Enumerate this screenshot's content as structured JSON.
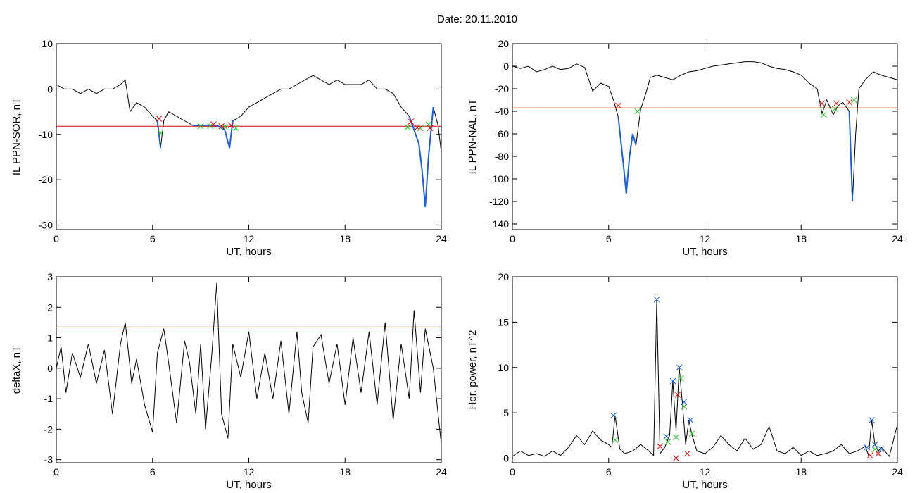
{
  "header": {
    "date_label": "Date:  20.11.2010"
  },
  "colors": {
    "trace": "#000000",
    "threshold": "#e00000",
    "highlight": "#1a5fd6",
    "marker_red": "#e00000",
    "marker_green": "#22c022",
    "marker_blue": "#1a5fd6"
  },
  "chart_data": [
    {
      "id": "il-ppn-sor",
      "type": "line",
      "xlabel": "UT, hours",
      "ylabel": "IL PPN-SOR, nT",
      "xlim": [
        0,
        24
      ],
      "ylim": [
        -31,
        10
      ],
      "xticks": [
        0,
        6,
        12,
        18,
        24
      ],
      "yticks": [
        10,
        0,
        -10,
        -20,
        -30
      ],
      "threshold": -8.2,
      "x": [
        0,
        0.5,
        1,
        1.5,
        2,
        2.5,
        3,
        3.5,
        4,
        4.3,
        4.6,
        5,
        5.5,
        6,
        6.3,
        6.5,
        6.7,
        7,
        7.5,
        8,
        8.5,
        9,
        9.5,
        10,
        10.5,
        10.8,
        11,
        11.5,
        12,
        12.5,
        13,
        13.5,
        14,
        14.5,
        15,
        15.5,
        16,
        16.5,
        17,
        17.5,
        18,
        18.5,
        19,
        19.5,
        20,
        20.5,
        21,
        21.5,
        22,
        22.3,
        22.6,
        22.8,
        23,
        23.2,
        23.5,
        23.8,
        24
      ],
      "y": [
        1,
        0,
        0,
        -1,
        0,
        -1,
        0,
        0,
        1,
        2,
        -5,
        -3,
        -4,
        -6,
        -7,
        -13,
        -7,
        -5,
        -6,
        -7,
        -8,
        -8,
        -8,
        -8,
        -9,
        -13,
        -7,
        -6,
        -4,
        -3,
        -2,
        -1,
        0,
        0,
        1,
        2,
        3,
        2,
        1,
        2,
        1,
        1,
        1,
        2,
        0,
        0,
        -1,
        -4,
        -6,
        -9,
        -12,
        -18,
        -26,
        -15,
        -4,
        -8,
        -14
      ],
      "highlight_segments": [
        [
          6.3,
          6.6
        ],
        [
          8.5,
          11
        ],
        [
          21.8,
          23.6
        ]
      ],
      "markers_red": [
        [
          6.4,
          -6.5
        ],
        [
          9.8,
          -7.8
        ],
        [
          10.3,
          -8.2
        ],
        [
          10.9,
          -8
        ],
        [
          22.1,
          -7.2
        ],
        [
          22.5,
          -8.5
        ],
        [
          23.3,
          -8.6
        ]
      ],
      "markers_green": [
        [
          6.5,
          -9.7
        ],
        [
          9,
          -8.2
        ],
        [
          9.6,
          -8.1
        ],
        [
          10.5,
          -8.3
        ],
        [
          11.2,
          -8.6
        ],
        [
          21.9,
          -8.4
        ],
        [
          22.7,
          -8.6
        ],
        [
          23.2,
          -7.8
        ]
      ]
    },
    {
      "id": "il-ppn-nal",
      "type": "line",
      "xlabel": "UT, hours",
      "ylabel": "IL PPN-NAL, nT",
      "xlim": [
        0,
        24
      ],
      "ylim": [
        -145,
        20
      ],
      "xticks": [
        0,
        6,
        12,
        18,
        24
      ],
      "yticks": [
        20,
        0,
        -20,
        -40,
        -60,
        -80,
        -100,
        -120,
        -140
      ],
      "threshold": -37,
      "x": [
        0,
        0.5,
        1,
        1.5,
        2,
        2.5,
        3,
        3.5,
        4,
        4.5,
        5,
        5.5,
        6,
        6.3,
        6.6,
        6.9,
        7.1,
        7.3,
        7.5,
        7.7,
        8,
        8.3,
        8.6,
        9,
        9.5,
        10,
        10.5,
        11,
        11.5,
        12,
        12.5,
        13,
        13.5,
        14,
        14.5,
        15,
        15.5,
        16,
        16.5,
        17,
        17.5,
        18,
        18.5,
        19,
        19.3,
        19.6,
        20,
        20.3,
        20.6,
        21,
        21.2,
        21.4,
        21.6,
        22,
        22.5,
        23,
        23.5,
        24
      ],
      "y": [
        0,
        -2,
        0,
        -5,
        -3,
        0,
        -3,
        -2,
        2,
        -1,
        -22,
        -15,
        -18,
        -30,
        -45,
        -85,
        -113,
        -80,
        -60,
        -70,
        -38,
        -25,
        -10,
        -8,
        -10,
        -12,
        -8,
        -5,
        -4,
        -2,
        0,
        1,
        2,
        3,
        4,
        4,
        3,
        0,
        -2,
        -3,
        -5,
        -8,
        -15,
        -20,
        -42,
        -30,
        -43,
        -35,
        -32,
        -40,
        -120,
        -60,
        -20,
        -12,
        -5,
        -8,
        -10,
        -12
      ],
      "highlight_segments": [
        [
          6.5,
          7.8
        ],
        [
          19.3,
          19.4
        ],
        [
          20.1,
          20.2
        ],
        [
          21,
          21.3
        ]
      ],
      "markers_red": [
        [
          6.6,
          -35
        ],
        [
          19.3,
          -33
        ],
        [
          20.2,
          -33
        ],
        [
          21,
          -32
        ]
      ],
      "markers_green": [
        [
          7.8,
          -40
        ],
        [
          19.4,
          -43
        ],
        [
          20.1,
          -38
        ],
        [
          21.3,
          -30
        ]
      ]
    },
    {
      "id": "deltax",
      "type": "line",
      "xlabel": "UT, hours",
      "ylabel": "deltaX, nT",
      "xlim": [
        0,
        24
      ],
      "ylim": [
        -3.1,
        3
      ],
      "xticks": [
        0,
        6,
        12,
        18,
        24
      ],
      "yticks": [
        3,
        2,
        1,
        0,
        -1,
        -2,
        -3
      ],
      "threshold": 1.35,
      "x": [
        0,
        0.3,
        0.6,
        1,
        1.5,
        2,
        2.5,
        3,
        3.5,
        4,
        4.3,
        4.7,
        5,
        5.5,
        6,
        6.3,
        6.7,
        7,
        7.5,
        8,
        8.3,
        8.7,
        9,
        9.3,
        9.7,
        10,
        10.3,
        10.7,
        11,
        11.5,
        12,
        12.5,
        13,
        13.5,
        14,
        14.5,
        15,
        15.3,
        15.7,
        16,
        16.5,
        17,
        17.5,
        18,
        18.5,
        19,
        19.5,
        20,
        20.5,
        21,
        21.5,
        22,
        22.3,
        22.7,
        23,
        23.5,
        24
      ],
      "y": [
        0,
        0.7,
        -0.8,
        0.5,
        -0.3,
        0.8,
        -0.5,
        0.6,
        -1.5,
        0.8,
        1.5,
        -0.5,
        0.3,
        -1.2,
        -2.1,
        0.5,
        1.3,
        0.2,
        -1.8,
        0.9,
        0.2,
        -1.5,
        0.8,
        -2,
        0.5,
        2.8,
        -1.5,
        -2.3,
        0.8,
        -0.3,
        1.2,
        -1,
        0.5,
        -1,
        0.9,
        -1.5,
        1.2,
        -0.8,
        -1.8,
        0.7,
        1.1,
        -0.5,
        0.8,
        -1.2,
        1,
        -0.8,
        1.2,
        -1.2,
        1.5,
        -1.7,
        0.8,
        -1,
        1.9,
        -0.8,
        1.3,
        0,
        -2.5
      ]
    },
    {
      "id": "hor-power",
      "type": "line",
      "xlabel": "UT, hours",
      "ylabel": "Hor. power, nT^2",
      "xlim": [
        0,
        24
      ],
      "ylim": [
        -0.5,
        20
      ],
      "xticks": [
        0,
        6,
        12,
        18,
        24
      ],
      "yticks": [
        20,
        15,
        10,
        5,
        0
      ],
      "x": [
        0,
        0.5,
        1,
        1.5,
        2,
        2.5,
        3,
        3.5,
        4,
        4.5,
        5,
        5.5,
        6,
        6.2,
        6.4,
        6.7,
        7,
        7.5,
        8,
        8.5,
        8.8,
        9,
        9.2,
        9.5,
        9.8,
        10,
        10.2,
        10.4,
        10.6,
        10.8,
        11,
        11.2,
        11.5,
        12,
        12.5,
        13,
        13.5,
        14,
        14.5,
        15,
        15.5,
        16,
        16.5,
        17,
        17.5,
        18,
        18.5,
        19,
        19.5,
        20,
        20.5,
        21,
        21.5,
        22,
        22.2,
        22.4,
        22.6,
        22.8,
        23,
        23.5,
        24
      ],
      "y": [
        0.2,
        0.8,
        0.3,
        0.5,
        0.2,
        0.8,
        0.3,
        1.2,
        2.5,
        1.5,
        3,
        2,
        1.5,
        1.2,
        4.7,
        1,
        0.5,
        0.8,
        1.5,
        0.8,
        0.3,
        17.5,
        0.5,
        1.2,
        2.5,
        8.5,
        3,
        10,
        6,
        1.5,
        4.2,
        2.5,
        0.8,
        0.5,
        1.2,
        2.5,
        1.5,
        0.8,
        2.2,
        1,
        1.5,
        3.5,
        0.8,
        0.5,
        1.2,
        0.3,
        0.8,
        0.3,
        0.5,
        0.8,
        1.5,
        0.5,
        0.8,
        1.3,
        0.3,
        4.2,
        1.5,
        0.8,
        1.2,
        0.2,
        3.7
      ],
      "markers_blue": [
        [
          6.3,
          4.7
        ],
        [
          9,
          17.5
        ],
        [
          9.6,
          2.4
        ],
        [
          10,
          8.5
        ],
        [
          10.4,
          10
        ],
        [
          10.7,
          6.2
        ],
        [
          11.1,
          4.2
        ],
        [
          22.1,
          1.2
        ],
        [
          22.4,
          4.2
        ],
        [
          22.6,
          1.5
        ],
        [
          23,
          1
        ]
      ],
      "markers_green": [
        [
          6.4,
          2
        ],
        [
          9.7,
          1.8
        ],
        [
          10.2,
          2.3
        ],
        [
          10.5,
          8.8
        ],
        [
          10.7,
          5.7
        ],
        [
          11.2,
          2.7
        ],
        [
          22.6,
          1
        ]
      ],
      "markers_red": [
        [
          9.2,
          1.3
        ],
        [
          10.3,
          7
        ],
        [
          10.9,
          0.5
        ],
        [
          10.2,
          0
        ],
        [
          22.8,
          0.5
        ],
        [
          22.3,
          0.3
        ]
      ]
    }
  ]
}
